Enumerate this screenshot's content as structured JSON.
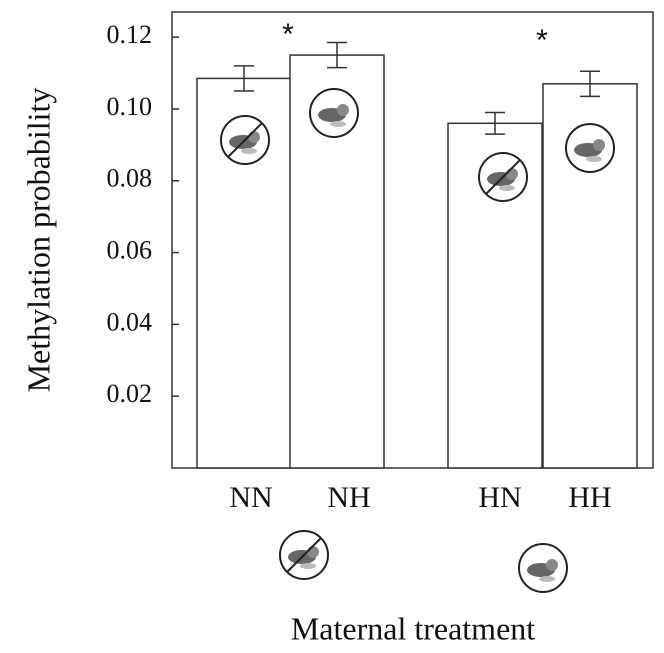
{
  "chart_data": {
    "type": "bar",
    "categories": [
      "NN",
      "NH",
      "HN",
      "HH"
    ],
    "values": [
      0.1085,
      0.115,
      0.096,
      0.107
    ],
    "errors": [
      0.0035,
      0.0035,
      0.003,
      0.0035
    ],
    "color": "#ffffff",
    "y_label": "Methylation probability",
    "x_label": "Maternal treatment",
    "annotations": [
      "*",
      "*"
    ],
    "ylim": [
      0,
      0.127
    ],
    "yticks": [
      0.02,
      0.04,
      0.06,
      0.08,
      {
        "value": 0.1,
        "label": "0.10"
      },
      0.12
    ]
  }
}
